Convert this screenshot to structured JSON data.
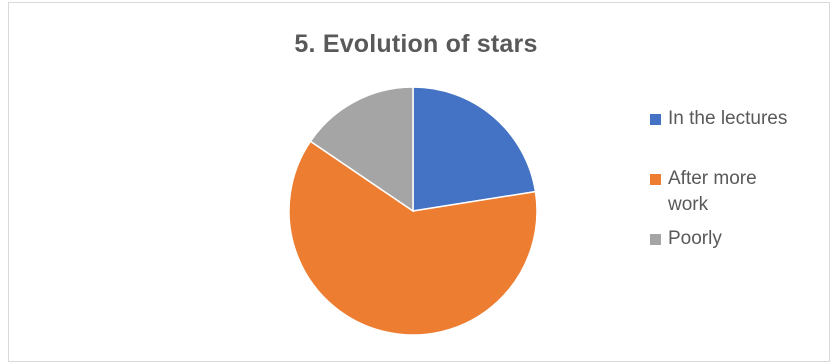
{
  "chart_data": {
    "type": "pie",
    "title": "5. Evolution of stars",
    "series": [
      {
        "name": "In the lectures",
        "value": 0.225,
        "color": "#4472C4"
      },
      {
        "name": "After more work",
        "value": 0.62,
        "color": "#ED7D31"
      },
      {
        "name": "Poorly",
        "value": 0.155,
        "color": "#A5A5A5"
      }
    ],
    "start": "top",
    "direction": "clockwise",
    "legend": "right"
  }
}
